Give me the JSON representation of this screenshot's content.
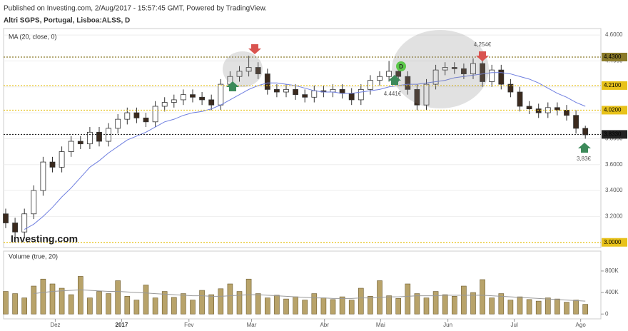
{
  "header": {
    "published": "Published on Investing.com, 2/Aug/2017 - 15:57:45 GMT, Powered by TradingView.",
    "instrument": "Altri SGPS, Portugal, Lisboa:ALSS, D"
  },
  "logo": "Investing.com",
  "chart_data": [
    {
      "type": "candlestick",
      "label": "MA (20, close, 0)",
      "up_color": "#ffffff",
      "down_color": "#3b2a1e",
      "grid": true,
      "ylim": [
        2.96,
        4.65
      ],
      "yticks": [
        {
          "value": 3.2,
          "label": "3.2000"
        },
        {
          "value": 3.4,
          "label": "3.4000"
        },
        {
          "value": 3.6,
          "label": "3.6000"
        },
        {
          "value": 3.8,
          "label": "3.8000"
        },
        {
          "value": 4.0,
          "label": "4.0000"
        },
        {
          "value": 4.2,
          "label": "4.2000"
        },
        {
          "value": 4.4,
          "label": "4.4000"
        },
        {
          "value": 4.6,
          "label": "4.6000"
        }
      ],
      "open": [
        3.22,
        3.15,
        3.08,
        3.22,
        3.4,
        3.62,
        3.58,
        3.7,
        3.78,
        3.76,
        3.85,
        3.78,
        3.88,
        3.95,
        4.0,
        3.96,
        3.93,
        4.05,
        4.08,
        4.1,
        4.14,
        4.12,
        4.1,
        4.06,
        4.22,
        4.28,
        4.32,
        4.35,
        4.3,
        4.18,
        4.16,
        4.18,
        4.14,
        4.12,
        4.17,
        4.16,
        4.18,
        4.15,
        4.1,
        4.18,
        4.25,
        4.28,
        4.32,
        4.28,
        4.18,
        4.06,
        4.22,
        4.33,
        4.35,
        4.34,
        4.3,
        4.38,
        4.24,
        4.33,
        4.22,
        4.16,
        4.05,
        4.03,
        4.0,
        4.04,
        4.02,
        3.98,
        3.88
      ],
      "high": [
        3.26,
        3.19,
        3.26,
        3.44,
        3.66,
        3.66,
        3.74,
        3.82,
        3.82,
        3.89,
        3.89,
        3.92,
        3.99,
        4.04,
        4.04,
        4.0,
        4.09,
        4.12,
        4.14,
        4.18,
        4.18,
        4.16,
        4.14,
        4.26,
        4.32,
        4.36,
        4.44,
        4.39,
        4.34,
        4.22,
        4.22,
        4.22,
        4.18,
        4.21,
        4.21,
        4.22,
        4.22,
        4.19,
        4.22,
        4.29,
        4.32,
        4.4,
        4.36,
        4.32,
        4.22,
        4.26,
        4.37,
        4.39,
        4.39,
        4.38,
        4.42,
        4.42,
        4.37,
        4.37,
        4.26,
        4.2,
        4.09,
        4.07,
        4.08,
        4.08,
        4.06,
        4.02,
        3.9
      ],
      "low": [
        3.11,
        3.04,
        3.04,
        3.18,
        3.36,
        3.54,
        3.54,
        3.66,
        3.72,
        3.72,
        3.74,
        3.74,
        3.84,
        3.91,
        3.92,
        3.89,
        3.89,
        4.01,
        4.04,
        4.06,
        4.08,
        4.06,
        4.02,
        4.02,
        4.18,
        4.24,
        4.28,
        4.26,
        4.14,
        4.12,
        4.12,
        4.1,
        4.08,
        4.08,
        4.12,
        4.12,
        4.11,
        4.06,
        4.06,
        4.14,
        4.21,
        4.24,
        4.24,
        4.14,
        4.02,
        4.02,
        4.18,
        4.29,
        4.3,
        4.26,
        4.26,
        4.2,
        4.2,
        4.18,
        4.12,
        4.01,
        3.99,
        3.96,
        3.96,
        3.98,
        3.94,
        3.84,
        3.8
      ],
      "close": [
        3.15,
        3.08,
        3.22,
        3.4,
        3.62,
        3.58,
        3.7,
        3.78,
        3.76,
        3.85,
        3.78,
        3.88,
        3.95,
        4.0,
        3.96,
        3.93,
        4.05,
        4.08,
        4.1,
        4.14,
        4.12,
        4.1,
        4.06,
        4.22,
        4.28,
        4.32,
        4.35,
        4.3,
        4.18,
        4.16,
        4.18,
        4.14,
        4.12,
        4.17,
        4.16,
        4.18,
        4.15,
        4.1,
        4.18,
        4.25,
        4.28,
        4.32,
        4.28,
        4.18,
        4.06,
        4.22,
        4.33,
        4.35,
        4.34,
        4.3,
        4.38,
        4.24,
        4.33,
        4.22,
        4.16,
        4.05,
        4.03,
        4.0,
        4.04,
        4.02,
        3.98,
        3.88,
        3.83
      ],
      "series": [
        {
          "color": "#6f7fe0",
          "values": [
            null,
            null,
            3.1,
            3.14,
            3.2,
            3.27,
            3.35,
            3.42,
            3.5,
            3.58,
            3.63,
            3.69,
            3.74,
            3.79,
            3.82,
            3.85,
            3.89,
            3.93,
            3.95,
            3.98,
            4.0,
            4.01,
            4.03,
            4.06,
            4.1,
            4.14,
            4.18,
            4.21,
            4.23,
            4.23,
            4.22,
            4.21,
            4.19,
            4.17,
            4.16,
            4.16,
            4.15,
            4.15,
            4.16,
            4.17,
            4.18,
            4.2,
            4.21,
            4.22,
            4.22,
            4.23,
            4.24,
            4.25,
            4.27,
            4.28,
            4.29,
            4.3,
            4.31,
            4.31,
            4.3,
            4.28,
            4.26,
            4.23,
            4.19,
            4.15,
            4.12,
            4.08,
            4.05
          ]
        }
      ],
      "levels": [
        {
          "value": 4.43,
          "label": "4.4300",
          "color": "#8a7a2a"
        },
        {
          "value": 4.21,
          "label": "4.2100",
          "color": "#e8c21a"
        },
        {
          "value": 4.02,
          "label": "4.0200",
          "color": "#e8c21a"
        },
        {
          "value": 3.0,
          "label": "3.0000",
          "color": "#e8c21a"
        },
        {
          "value": 3.833,
          "label": "3.8330",
          "color": "#222222"
        }
      ],
      "annotations": [
        "4,254€",
        "4.441€",
        "3,83€",
        "D"
      ]
    },
    {
      "type": "bar",
      "label": "Volume (true, 20)",
      "color": "#b8a36a",
      "ylim": [
        -90000,
        1170000
      ],
      "yticks": [
        0,
        {
          "value": 400000,
          "label": "400K"
        },
        {
          "value": 800000,
          "label": "800K"
        }
      ],
      "xticks": [
        {
          "value": 5.3,
          "label": "Dez"
        },
        {
          "value": 12.4,
          "label": "2017"
        },
        {
          "value": 19.6,
          "label": "Fev"
        },
        {
          "value": 26.3,
          "label": "Mar"
        },
        {
          "value": 34.1,
          "label": "Abr"
        },
        {
          "value": 40.1,
          "label": "Mai"
        },
        {
          "value": 47.3,
          "label": "Jun"
        },
        {
          "value": 54.4,
          "label": "Jul"
        },
        {
          "value": 61.5,
          "label": "Ago"
        }
      ],
      "values": [
        420000,
        380000,
        300000,
        520000,
        650000,
        560000,
        480000,
        360000,
        700000,
        300000,
        420000,
        380000,
        620000,
        330000,
        260000,
        540000,
        300000,
        420000,
        310000,
        380000,
        260000,
        440000,
        360000,
        470000,
        560000,
        420000,
        650000,
        380000,
        300000,
        350000,
        280000,
        320000,
        260000,
        380000,
        300000,
        270000,
        320000,
        260000,
        480000,
        330000,
        620000,
        340000,
        290000,
        560000,
        380000,
        300000,
        420000,
        360000,
        330000,
        520000,
        400000,
        640000,
        300000,
        380000,
        260000,
        320000,
        270000,
        240000,
        300000,
        280000,
        220000,
        260000,
        180000
      ],
      "series": [
        {
          "color": "#999999",
          "values": [
            null,
            null,
            null,
            380000,
            400000,
            420000,
            430000,
            440000,
            450000,
            440000,
            430000,
            420000,
            420000,
            410000,
            400000,
            390000,
            380000,
            370000,
            360000,
            350000,
            340000,
            340000,
            330000,
            330000,
            340000,
            350000,
            360000,
            360000,
            350000,
            340000,
            330000,
            320000,
            310000,
            300000,
            300000,
            290000,
            290000,
            290000,
            300000,
            300000,
            310000,
            320000,
            320000,
            330000,
            340000,
            340000,
            340000,
            350000,
            350000,
            350000,
            350000,
            350000,
            340000,
            330000,
            320000,
            310000,
            300000,
            290000,
            280000,
            270000,
            260000,
            250000,
            240000
          ]
        }
      ]
    }
  ]
}
